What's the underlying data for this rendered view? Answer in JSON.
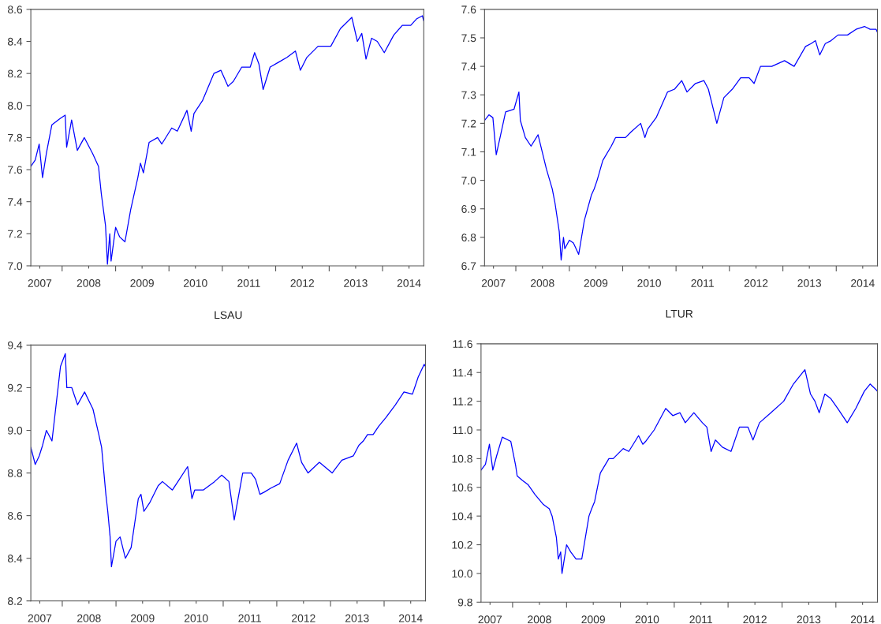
{
  "chart_data": [
    {
      "type": "line",
      "x": [
        "2007-06-01",
        "2007-07-01",
        "2007-07-28",
        "2007-08-20",
        "2007-09-15",
        "2007-10-23",
        "2007-12-20",
        "2008-01-22",
        "2008-02-01",
        "2008-03-06",
        "2008-04-14",
        "2008-06-01",
        "2008-07-28",
        "2008-09-06",
        "2008-09-25",
        "2008-10-24",
        "2008-11-06",
        "2008-11-22",
        "2008-12-01",
        "2009-01-01",
        "2009-01-29",
        "2009-03-06",
        "2009-04-14",
        "2009-06-02",
        "2009-06-20",
        "2009-07-10",
        "2009-08-18",
        "2009-10-15",
        "2009-11-13",
        "2010-01-20",
        "2010-02-27",
        "2010-05-04",
        "2010-06-02",
        "2010-06-21",
        "2010-08-18",
        "2010-11-04",
        "2010-12-22",
        "2011-02-09",
        "2011-03-17",
        "2011-05-14",
        "2011-07-11",
        "2011-08-10",
        "2011-09-08",
        "2011-10-07",
        "2011-11-24",
        "2012-01-21",
        "2012-03-18",
        "2012-05-15",
        "2012-06-18",
        "2012-08-01",
        "2012-10-17",
        "2013-01-12",
        "2013-03-19",
        "2013-06-05",
        "2013-07-13",
        "2013-08-12",
        "2013-09-10",
        "2013-10-18",
        "2013-11-26",
        "2014-01-13",
        "2014-03-19",
        "2014-05-16",
        "2014-07-13",
        "2014-08-21",
        "2014-10-01",
        "2014-10-09"
      ],
      "series": [
        {
          "color": "#0000ff",
          "values": [
            7.62,
            7.66,
            7.76,
            7.55,
            7.7,
            7.88,
            7.92,
            7.94,
            7.74,
            7.91,
            7.72,
            7.8,
            7.7,
            7.62,
            7.45,
            7.25,
            7.01,
            7.2,
            7.03,
            7.24,
            7.18,
            7.15,
            7.35,
            7.55,
            7.64,
            7.58,
            7.77,
            7.8,
            7.76,
            7.86,
            7.84,
            7.97,
            7.84,
            7.95,
            8.03,
            8.2,
            8.22,
            8.12,
            8.15,
            8.24,
            8.24,
            8.33,
            8.26,
            8.1,
            8.24,
            8.27,
            8.3,
            8.34,
            8.22,
            8.3,
            8.37,
            8.37,
            8.48,
            8.55,
            8.4,
            8.45,
            8.29,
            8.42,
            8.4,
            8.33,
            8.44,
            8.5,
            8.5,
            8.54,
            8.56,
            8.53
          ]
        }
      ],
      "xlim": [
        "2007-06-01",
        "2014-10-10"
      ],
      "ylim": [
        7.0,
        8.6
      ],
      "yticks": [
        {
          "value": 7,
          "label": "7.0"
        },
        7.2,
        7.4,
        7.6,
        7.8,
        {
          "value": 8,
          "label": "8.0"
        },
        8.2,
        8.4,
        8.6
      ],
      "xticks": [
        {
          "value": "2008-01-01",
          "label": null
        },
        {
          "value": "2009-01-01",
          "label": null
        },
        {
          "value": "2010-01-01",
          "label": null
        },
        {
          "value": "2011-01-01",
          "label": null
        },
        {
          "value": "2012-01-01",
          "label": null
        },
        {
          "value": "2013-01-01",
          "label": null
        },
        {
          "value": "2014-01-01",
          "label": null
        },
        {
          "value": "2007-08-01",
          "label": "2007"
        },
        {
          "value": "2008-07-01",
          "label": "2008"
        },
        {
          "value": "2009-07-01",
          "label": "2009"
        },
        {
          "value": "2010-07-01",
          "label": "2010"
        },
        {
          "value": "2011-07-01",
          "label": "2011"
        },
        {
          "value": "2012-07-01",
          "label": "2012"
        },
        {
          "value": "2013-07-01",
          "label": "2013"
        },
        {
          "value": "2014-07-01",
          "label": "2014"
        }
      ]
    },
    {
      "type": "line",
      "x": [
        "2007-06-01",
        "2007-07-01",
        "2007-07-28",
        "2007-08-20",
        "2007-09-15",
        "2007-10-23",
        "2007-12-20",
        "2008-01-22",
        "2008-02-01",
        "2008-03-06",
        "2008-04-14",
        "2008-06-01",
        "2008-07-28",
        "2008-09-06",
        "2008-09-25",
        "2008-10-24",
        "2008-11-06",
        "2008-11-22",
        "2008-12-01",
        "2009-01-01",
        "2009-01-29",
        "2009-03-06",
        "2009-04-14",
        "2009-06-02",
        "2009-06-20",
        "2009-07-10",
        "2009-08-18",
        "2009-10-15",
        "2009-11-13",
        "2010-01-20",
        "2010-02-27",
        "2010-05-04",
        "2010-06-02",
        "2010-06-21",
        "2010-08-18",
        "2010-11-04",
        "2010-12-22",
        "2011-02-09",
        "2011-03-17",
        "2011-05-14",
        "2011-07-11",
        "2011-08-10",
        "2011-09-08",
        "2011-10-07",
        "2011-11-24",
        "2012-01-21",
        "2012-03-18",
        "2012-05-15",
        "2012-06-18",
        "2012-08-01",
        "2012-10-17",
        "2013-01-12",
        "2013-03-19",
        "2013-06-05",
        "2013-07-13",
        "2013-08-12",
        "2013-09-10",
        "2013-10-18",
        "2013-11-26",
        "2014-01-13",
        "2014-03-19",
        "2014-05-16",
        "2014-07-13",
        "2014-08-21",
        "2014-10-01",
        "2014-10-09"
      ],
      "series": [
        {
          "color": "#0000ff",
          "values": [
            7.21,
            7.23,
            7.22,
            7.09,
            7.15,
            7.24,
            7.25,
            7.31,
            7.21,
            7.15,
            7.12,
            7.16,
            7.04,
            6.97,
            6.92,
            6.82,
            6.72,
            6.8,
            6.76,
            6.79,
            6.78,
            6.74,
            6.86,
            6.95,
            6.97,
            7.0,
            7.07,
            7.12,
            7.15,
            7.15,
            7.17,
            7.2,
            7.15,
            7.18,
            7.22,
            7.31,
            7.32,
            7.35,
            7.31,
            7.34,
            7.35,
            7.32,
            7.26,
            7.2,
            7.29,
            7.32,
            7.36,
            7.36,
            7.34,
            7.4,
            7.4,
            7.42,
            7.4,
            7.47,
            7.48,
            7.49,
            7.44,
            7.48,
            7.49,
            7.51,
            7.51,
            7.53,
            7.54,
            7.53,
            7.53,
            7.52
          ]
        }
      ],
      "xlim": [
        "2007-06-01",
        "2014-10-10"
      ],
      "ylim": [
        6.7,
        7.6
      ],
      "yticks": [
        6.7,
        6.8,
        6.9,
        {
          "value": 7,
          "label": "7.0"
        },
        7.1,
        7.2,
        7.3,
        7.4,
        7.5,
        7.6
      ],
      "xticks": [
        {
          "value": "2008-01-01",
          "label": null
        },
        {
          "value": "2009-01-01",
          "label": null
        },
        {
          "value": "2010-01-01",
          "label": null
        },
        {
          "value": "2011-01-01",
          "label": null
        },
        {
          "value": "2012-01-01",
          "label": null
        },
        {
          "value": "2013-01-01",
          "label": null
        },
        {
          "value": "2014-01-01",
          "label": null
        },
        {
          "value": "2007-08-01",
          "label": "2007"
        },
        {
          "value": "2008-07-01",
          "label": "2008"
        },
        {
          "value": "2009-07-01",
          "label": "2009"
        },
        {
          "value": "2010-07-01",
          "label": "2010"
        },
        {
          "value": "2011-07-01",
          "label": "2011"
        },
        {
          "value": "2012-07-01",
          "label": "2012"
        },
        {
          "value": "2013-07-01",
          "label": "2013"
        },
        {
          "value": "2014-07-01",
          "label": "2014"
        }
      ]
    },
    {
      "type": "line",
      "title": "LSAU",
      "x": [
        "2007-06-01",
        "2007-07-01",
        "2007-07-28",
        "2007-08-20",
        "2007-09-15",
        "2007-10-23",
        "2007-12-20",
        "2008-01-22",
        "2008-02-01",
        "2008-03-06",
        "2008-04-14",
        "2008-06-01",
        "2008-07-28",
        "2008-09-06",
        "2008-09-25",
        "2008-10-24",
        "2008-11-06",
        "2008-11-22",
        "2008-12-01",
        "2009-01-01",
        "2009-01-29",
        "2009-03-06",
        "2009-04-14",
        "2009-06-02",
        "2009-06-20",
        "2009-07-10",
        "2009-08-18",
        "2009-10-15",
        "2009-11-13",
        "2010-01-20",
        "2010-02-27",
        "2010-05-04",
        "2010-06-02",
        "2010-06-21",
        "2010-08-18",
        "2010-11-04",
        "2010-12-22",
        "2011-02-09",
        "2011-03-17",
        "2011-05-14",
        "2011-07-11",
        "2011-08-10",
        "2011-09-08",
        "2011-10-07",
        "2011-11-24",
        "2012-01-21",
        "2012-03-18",
        "2012-05-15",
        "2012-06-18",
        "2012-08-01",
        "2012-10-17",
        "2013-01-12",
        "2013-03-19",
        "2013-06-05",
        "2013-07-13",
        "2013-08-12",
        "2013-09-10",
        "2013-10-18",
        "2013-11-26",
        "2014-01-13",
        "2014-03-19",
        "2014-05-16",
        "2014-07-13",
        "2014-08-21",
        "2014-10-01",
        "2014-10-09"
      ],
      "series": [
        {
          "color": "#0000ff",
          "values": [
            8.92,
            8.84,
            8.88,
            8.93,
            9.0,
            8.95,
            9.3,
            9.36,
            9.2,
            9.2,
            9.12,
            9.18,
            9.1,
            8.98,
            8.92,
            8.7,
            8.62,
            8.5,
            8.36,
            8.48,
            8.5,
            8.4,
            8.45,
            8.68,
            8.7,
            8.62,
            8.66,
            8.74,
            8.76,
            8.72,
            8.76,
            8.83,
            8.68,
            8.72,
            8.72,
            8.76,
            8.79,
            8.76,
            8.58,
            8.8,
            8.8,
            8.77,
            8.7,
            8.71,
            8.73,
            8.75,
            8.86,
            8.94,
            8.85,
            8.8,
            8.85,
            8.8,
            8.86,
            8.88,
            8.93,
            8.95,
            8.98,
            8.98,
            9.02,
            9.06,
            9.12,
            9.18,
            9.17,
            9.25,
            9.31,
            9.3
          ]
        }
      ],
      "xlim": [
        "2007-06-01",
        "2014-10-10"
      ],
      "ylim": [
        8.2,
        9.4
      ],
      "yticks": [
        8.2,
        8.4,
        8.6,
        8.8,
        {
          "value": 9,
          "label": "9.0"
        },
        9.2,
        9.4
      ],
      "xticks": [
        {
          "value": "2008-01-01",
          "label": null
        },
        {
          "value": "2009-01-01",
          "label": null
        },
        {
          "value": "2010-01-01",
          "label": null
        },
        {
          "value": "2011-01-01",
          "label": null
        },
        {
          "value": "2012-01-01",
          "label": null
        },
        {
          "value": "2013-01-01",
          "label": null
        },
        {
          "value": "2014-01-01",
          "label": null
        },
        {
          "value": "2007-08-01",
          "label": "2007"
        },
        {
          "value": "2008-07-01",
          "label": "2008"
        },
        {
          "value": "2009-07-01",
          "label": "2009"
        },
        {
          "value": "2010-07-01",
          "label": "2010"
        },
        {
          "value": "2011-07-01",
          "label": "2011"
        },
        {
          "value": "2012-07-01",
          "label": "2012"
        },
        {
          "value": "2013-07-01",
          "label": "2013"
        },
        {
          "value": "2014-07-01",
          "label": "2014"
        }
      ]
    },
    {
      "type": "line",
      "title": "LTUR",
      "x": [
        "2007-06-01",
        "2007-07-01",
        "2007-07-28",
        "2007-08-20",
        "2007-09-15",
        "2007-10-23",
        "2007-12-20",
        "2008-01-22",
        "2008-02-01",
        "2008-03-06",
        "2008-04-14",
        "2008-06-01",
        "2008-07-28",
        "2008-09-06",
        "2008-09-25",
        "2008-10-24",
        "2008-11-06",
        "2008-11-22",
        "2008-12-01",
        "2009-01-01",
        "2009-01-29",
        "2009-03-06",
        "2009-04-14",
        "2009-06-02",
        "2009-06-20",
        "2009-07-10",
        "2009-08-18",
        "2009-10-15",
        "2009-11-13",
        "2010-01-20",
        "2010-02-27",
        "2010-05-04",
        "2010-06-02",
        "2010-06-21",
        "2010-08-18",
        "2010-11-04",
        "2010-12-22",
        "2011-02-09",
        "2011-03-17",
        "2011-05-14",
        "2011-07-11",
        "2011-08-10",
        "2011-09-08",
        "2011-10-07",
        "2011-11-24",
        "2012-01-21",
        "2012-03-18",
        "2012-05-15",
        "2012-06-18",
        "2012-08-01",
        "2012-10-17",
        "2013-01-12",
        "2013-03-19",
        "2013-06-05",
        "2013-07-13",
        "2013-08-12",
        "2013-09-10",
        "2013-10-18",
        "2013-11-26",
        "2014-01-13",
        "2014-03-19",
        "2014-05-16",
        "2014-07-13",
        "2014-08-21",
        "2014-10-01",
        "2014-10-09"
      ],
      "series": [
        {
          "color": "#0000ff",
          "values": [
            10.72,
            10.76,
            10.9,
            10.72,
            10.82,
            10.95,
            10.92,
            10.75,
            10.68,
            10.65,
            10.62,
            10.55,
            10.48,
            10.45,
            10.4,
            10.25,
            10.1,
            10.15,
            10.0,
            10.2,
            10.15,
            10.1,
            10.1,
            10.4,
            10.45,
            10.5,
            10.7,
            10.8,
            10.8,
            10.87,
            10.85,
            10.96,
            10.9,
            10.92,
            11.0,
            11.15,
            11.1,
            11.12,
            11.05,
            11.12,
            11.05,
            11.02,
            10.85,
            10.93,
            10.88,
            10.85,
            11.02,
            11.02,
            10.93,
            11.05,
            11.12,
            11.2,
            11.32,
            11.42,
            11.25,
            11.2,
            11.12,
            11.25,
            11.22,
            11.15,
            11.05,
            11.15,
            11.27,
            11.32,
            11.28,
            11.27
          ]
        }
      ],
      "xlim": [
        "2007-06-01",
        "2014-10-10"
      ],
      "ylim": [
        9.8,
        11.6
      ],
      "yticks": [
        9.8,
        {
          "value": 10,
          "label": "10.0"
        },
        10.2,
        10.4,
        10.6,
        10.8,
        {
          "value": 11,
          "label": "11.0"
        },
        11.2,
        11.4,
        11.6
      ],
      "xticks": [
        {
          "value": "2008-01-01",
          "label": null
        },
        {
          "value": "2009-01-01",
          "label": null
        },
        {
          "value": "2010-01-01",
          "label": null
        },
        {
          "value": "2011-01-01",
          "label": null
        },
        {
          "value": "2012-01-01",
          "label": null
        },
        {
          "value": "2013-01-01",
          "label": null
        },
        {
          "value": "2014-01-01",
          "label": null
        },
        {
          "value": "2007-08-01",
          "label": "2007"
        },
        {
          "value": "2008-07-01",
          "label": "2008"
        },
        {
          "value": "2009-07-01",
          "label": "2009"
        },
        {
          "value": "2010-07-01",
          "label": "2010"
        },
        {
          "value": "2011-07-01",
          "label": "2011"
        },
        {
          "value": "2012-07-01",
          "label": "2012"
        },
        {
          "value": "2013-07-01",
          "label": "2013"
        },
        {
          "value": "2014-07-01",
          "label": "2014"
        }
      ]
    }
  ]
}
